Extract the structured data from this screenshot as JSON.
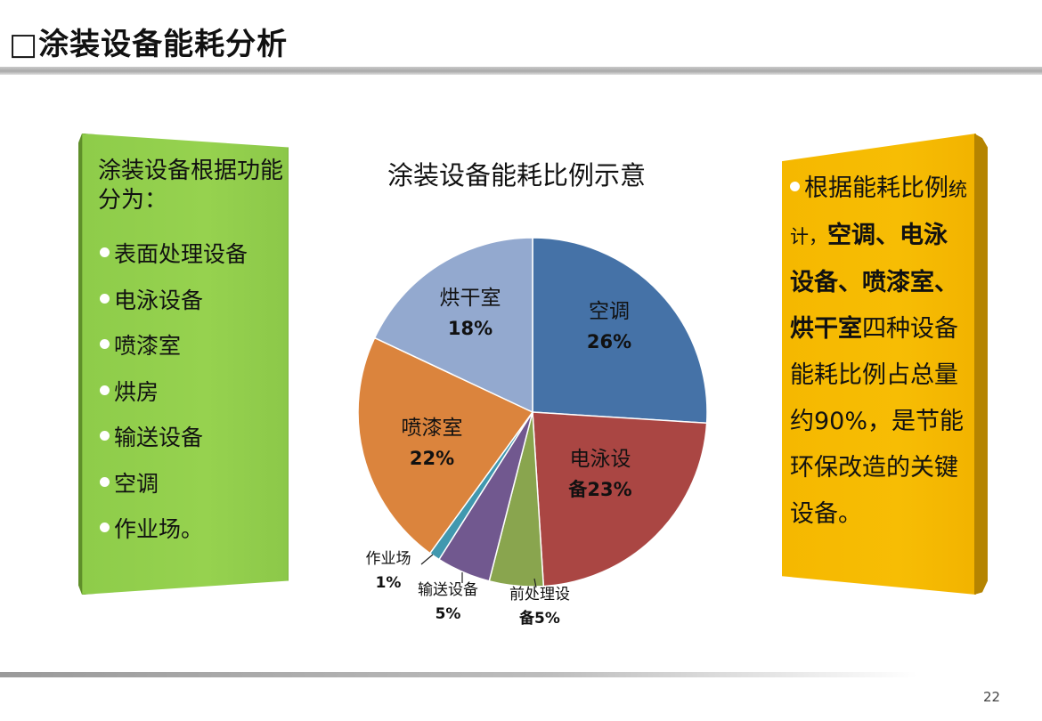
{
  "slide": {
    "title": "□涂装设备能耗分析",
    "page_number": "22"
  },
  "left_panel": {
    "intro": "涂装设备根据功能分为：",
    "items": [
      "表面处理设备",
      "电泳设备",
      "喷漆室",
      "烘房",
      "输送设备",
      "空调",
      "作业场。"
    ],
    "color": "#92cf4c"
  },
  "right_panel": {
    "seg1": "根据能耗比例",
    "seg2": "统计，",
    "seg3": "空调、电泳设备、喷漆室、烘干室",
    "seg4": "四种设备能耗比例占总量约90%，是节能环保改造的关键设备。",
    "color": "#f5b800"
  },
  "chart_data": {
    "type": "pie",
    "title": "涂装设备能耗比例示意",
    "slices": [
      {
        "label_line1": "空调",
        "label_line2": "26%",
        "value": 26,
        "color": "#4572a7"
      },
      {
        "label_line1": "电泳设",
        "label_line2": "备23%",
        "value": 23,
        "color": "#aa4643"
      },
      {
        "label_line1": "前处理设",
        "label_line2": "备5%",
        "value": 5,
        "color": "#89a54e"
      },
      {
        "label_line1": "输送设备",
        "label_line2": "5%",
        "value": 5,
        "color": "#71588f"
      },
      {
        "label_line1": "作业场",
        "label_line2": "1%",
        "value": 1,
        "color": "#4198af"
      },
      {
        "label_line1": "喷漆室",
        "label_line2": "22%",
        "value": 22,
        "color": "#db843d"
      },
      {
        "label_line1": "烘干室",
        "label_line2": "18%",
        "value": 18,
        "color": "#93a9cf"
      }
    ]
  }
}
